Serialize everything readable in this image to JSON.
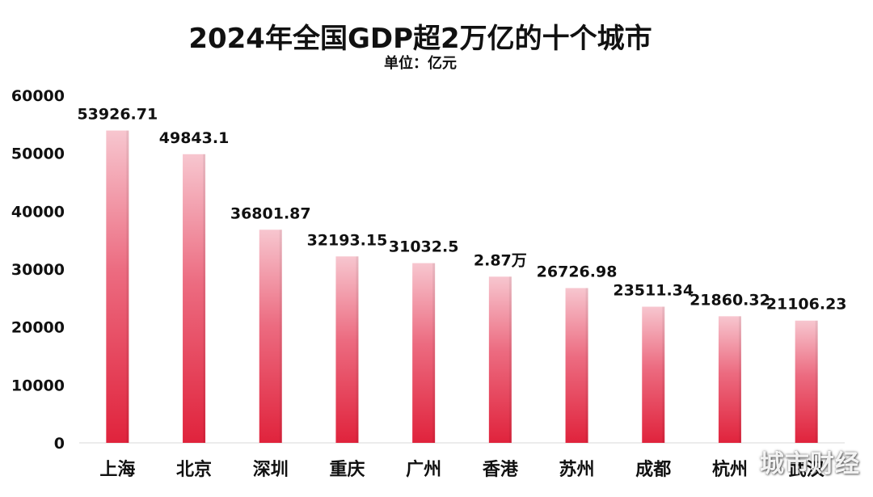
{
  "chart_data": {
    "type": "bar",
    "title": "2024年全国GDP超2万亿的十个城市",
    "subtitle": "单位：亿元",
    "categories": [
      "上海",
      "北京",
      "深圳",
      "重庆",
      "广州",
      "香港",
      "苏州",
      "成都",
      "杭州",
      "武汉"
    ],
    "values": [
      53926.71,
      49843.1,
      36801.87,
      32193.15,
      31032.5,
      28700,
      26726.98,
      23511.34,
      21860.32,
      21106.23
    ],
    "data_labels": [
      "53926.71",
      "49843.1",
      "36801.87",
      "32193.15",
      "31032.5",
      "2.87万",
      "26726.98",
      "23511.34",
      "21860.32",
      "21106.23"
    ],
    "yticks": [
      "0",
      "10000",
      "20000",
      "30000",
      "40000",
      "50000",
      "60000"
    ],
    "ylim": [
      0,
      60000
    ],
    "xlabel": "",
    "ylabel": "",
    "grid": false,
    "bar_color_top": "#f7c6cf",
    "bar_color_bottom": "#e0233c"
  },
  "watermark": "城市财经"
}
